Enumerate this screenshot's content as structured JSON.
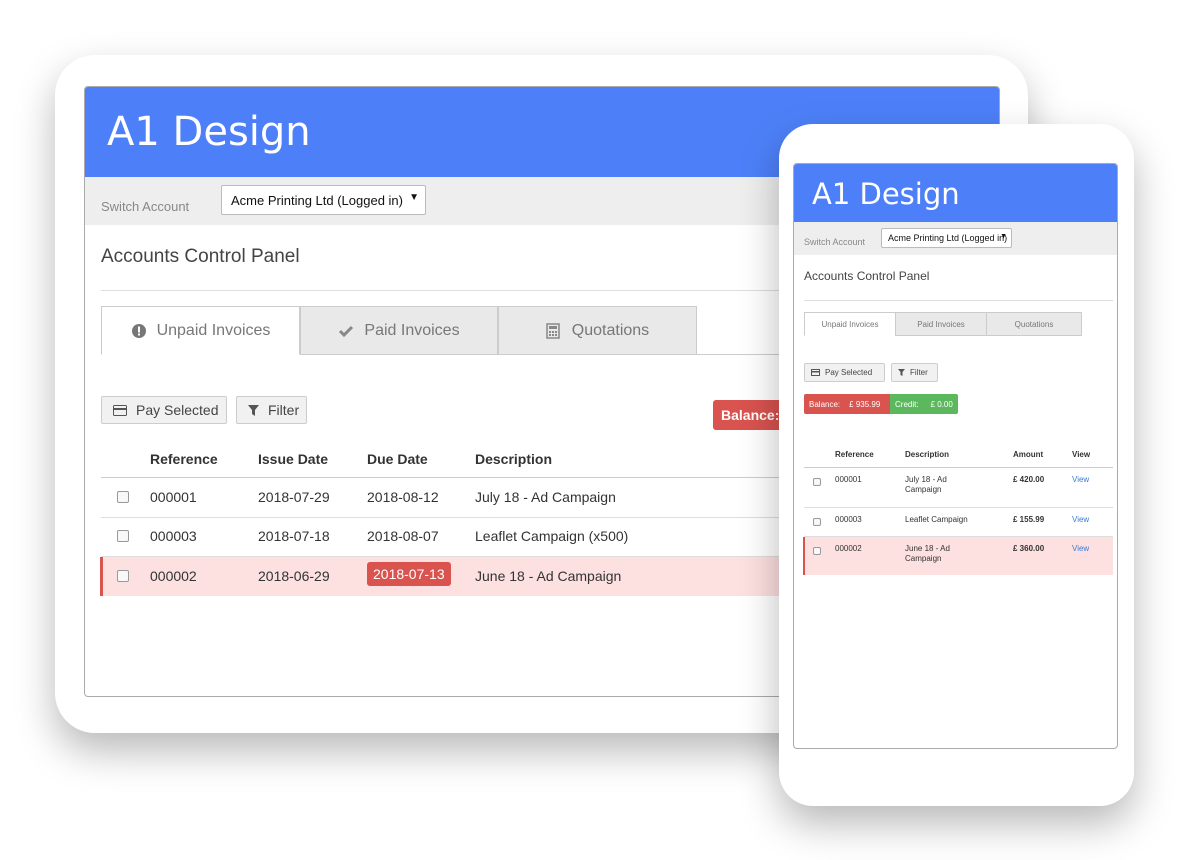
{
  "tablet": {
    "brand": "A1 Design",
    "switch_label": "Switch Account",
    "account": "Acme Printing Ltd (Logged in)",
    "panel_title": "Accounts Control Panel",
    "tabs": [
      "Unpaid Invoices",
      "Paid Invoices",
      "Quotations"
    ],
    "buttons": [
      "Pay Selected",
      "Filter"
    ],
    "balance_label": "Balance:",
    "columns": [
      "Reference",
      "Issue Date",
      "Due Date",
      "Description"
    ],
    "rows": [
      [
        "000001",
        "2018-07-29",
        "2018-08-12",
        "July 18 - Ad Campaign"
      ],
      [
        "000003",
        "2018-07-18",
        "2018-08-07",
        "Leaflet Campaign (x500)"
      ],
      [
        "000002",
        "2018-06-29",
        "2018-07-13",
        "June 18 - Ad Campaign"
      ]
    ]
  },
  "phone": {
    "brand": "A1 Design",
    "switch_label": "Switch Account",
    "account": "Acme Printing Ltd (Logged in)",
    "panel_title": "Accounts Control Panel",
    "tabs": [
      "Unpaid Invoices",
      "Paid Invoices",
      "Quotations"
    ],
    "buttons": [
      "Pay Selected",
      "Filter"
    ],
    "balance_label": "Balance:",
    "balance": "£ 935.99",
    "credit_label": "Credit:",
    "credit": "£ 0.00",
    "columns": [
      "Reference",
      "Description",
      "Amount",
      "View"
    ],
    "rows": [
      [
        "000001",
        "July 18 - Ad Campaign",
        "£ 420.00",
        "View"
      ],
      [
        "000003",
        "Leaflet Campaign",
        "£ 155.99",
        "View"
      ],
      [
        "000002",
        "June 18 - Ad Campaign",
        "£ 360.00",
        "View"
      ]
    ]
  }
}
